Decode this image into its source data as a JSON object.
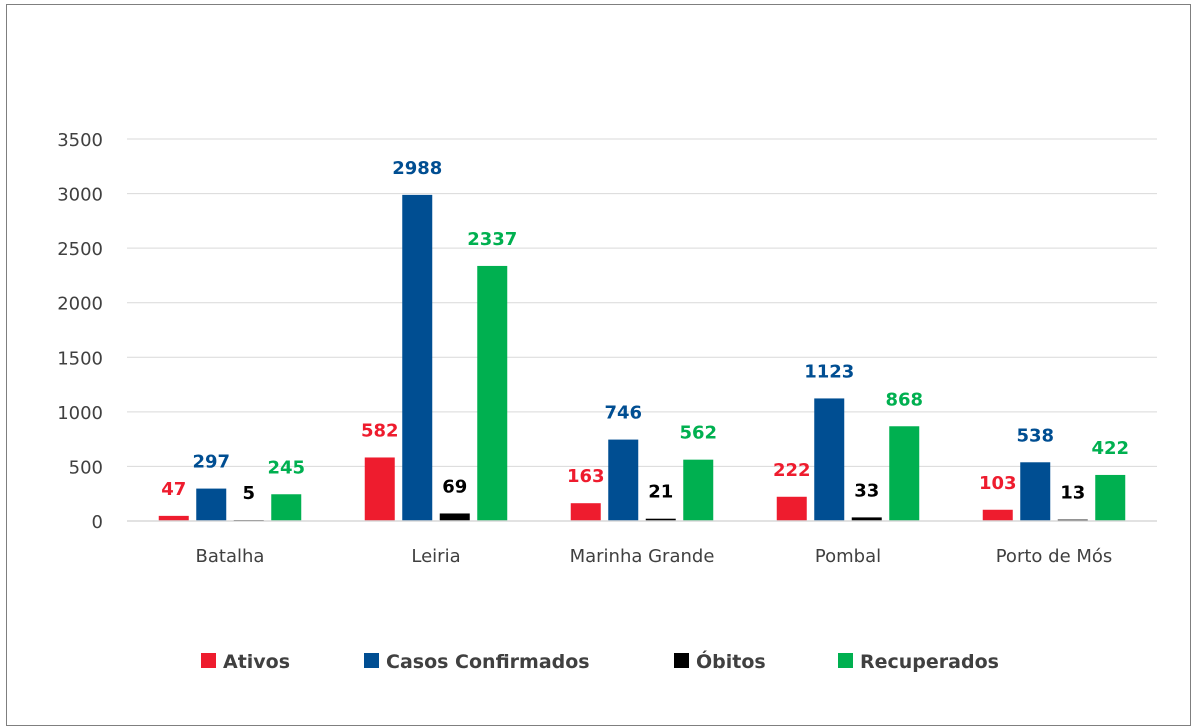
{
  "chart_data": {
    "type": "bar",
    "categories": [
      "Batalha",
      "Leiria",
      "Marinha Grande",
      "Pombal",
      "Porto de Mós"
    ],
    "series": [
      {
        "name": "Ativos",
        "values": [
          47,
          582,
          163,
          222,
          103
        ],
        "color": "#ee1c2e"
      },
      {
        "name": "Casos Confirmados",
        "values": [
          297,
          2988,
          746,
          1123,
          538
        ],
        "color": "#004e92"
      },
      {
        "name": "Óbitos",
        "values": [
          5,
          69,
          21,
          33,
          13
        ],
        "color": "#000000"
      },
      {
        "name": "Recuperados",
        "values": [
          245,
          2337,
          562,
          868,
          422
        ],
        "color": "#00b050"
      }
    ],
    "y_ticks": [
      "0",
      "500",
      "1000",
      "1500",
      "2000",
      "2500",
      "3000",
      "3500"
    ],
    "ylim": [
      0,
      3500
    ],
    "grid": true,
    "legend": "bottom",
    "data_labels": true
  }
}
